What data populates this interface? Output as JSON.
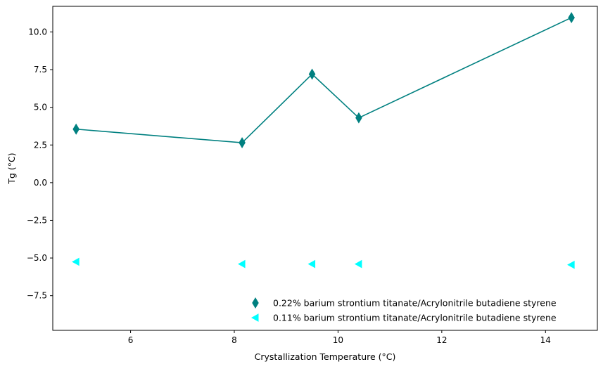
{
  "chart_data": {
    "type": "scatter",
    "title": "",
    "xlabel": "Crystallization Temperature (°C)",
    "ylabel": "Tg (°C)",
    "xlim": [
      4.5,
      15.0
    ],
    "ylim": [
      -9.8,
      11.7
    ],
    "xticks": [
      6,
      8,
      10,
      12,
      14
    ],
    "yticks": [
      -7.5,
      -5.0,
      -2.5,
      0.0,
      2.5,
      5.0,
      7.5,
      10.0
    ],
    "xtick_labels": [
      "6",
      "8",
      "10",
      "12",
      "14"
    ],
    "ytick_labels": [
      "−7.5",
      "−5.0",
      "−2.5",
      "0.0",
      "2.5",
      "5.0",
      "7.5",
      "10.0"
    ],
    "grid": false,
    "legend_position": "lower-right",
    "series": [
      {
        "name": "0.22% barium strontium titanate/Acrylonitrile butadiene styrene",
        "color": "#008080",
        "marker": "thin-diamond",
        "line": true,
        "x": [
          4.95,
          8.15,
          9.5,
          10.4,
          14.5
        ],
        "y": [
          3.55,
          2.65,
          7.2,
          4.3,
          10.95
        ]
      },
      {
        "name": "0.11% barium strontium titanate/Acrylonitrile butadiene styrene",
        "color": "#00FFFF",
        "marker": "triangle-left",
        "line": false,
        "x": [
          4.95,
          8.15,
          9.5,
          10.4,
          14.5
        ],
        "y": [
          -5.25,
          -5.4,
          -5.4,
          -5.4,
          -5.45
        ]
      }
    ]
  }
}
